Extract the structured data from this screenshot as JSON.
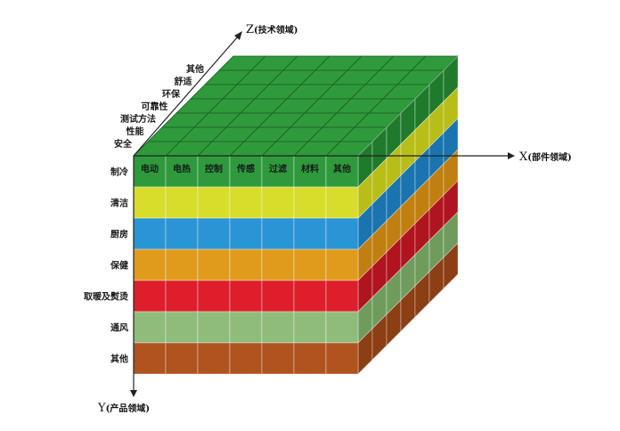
{
  "axes": {
    "z": {
      "letter": "Z",
      "sub": "(技术领域)"
    },
    "x": {
      "letter": "X",
      "sub": "(部件领域)"
    },
    "y": {
      "letter": "Y",
      "sub": "(产品领域)"
    }
  },
  "x_labels": [
    "电动",
    "电热",
    "控制",
    "传感",
    "过滤",
    "材料",
    "其他"
  ],
  "y_labels": [
    "制冷",
    "清洁",
    "厨房",
    "保健",
    "取暖及熨烫",
    "通风",
    "其他"
  ],
  "z_labels": [
    "安全",
    "性能",
    "测试方法",
    "可靠性",
    "环保",
    "舒适",
    "其他"
  ],
  "layer_colors": [
    "#2e9a3c",
    "#d8dc2a",
    "#2a95d4",
    "#e09a1c",
    "#dc1f2a",
    "#8fbc7a",
    "#b0531e"
  ],
  "side_colors": [
    "#1f7a2c",
    "#b9bd18",
    "#1a74b0",
    "#c07f10",
    "#b0141e",
    "#6f9c5c",
    "#8c3e14"
  ],
  "top_color": "#2e9a3c"
}
